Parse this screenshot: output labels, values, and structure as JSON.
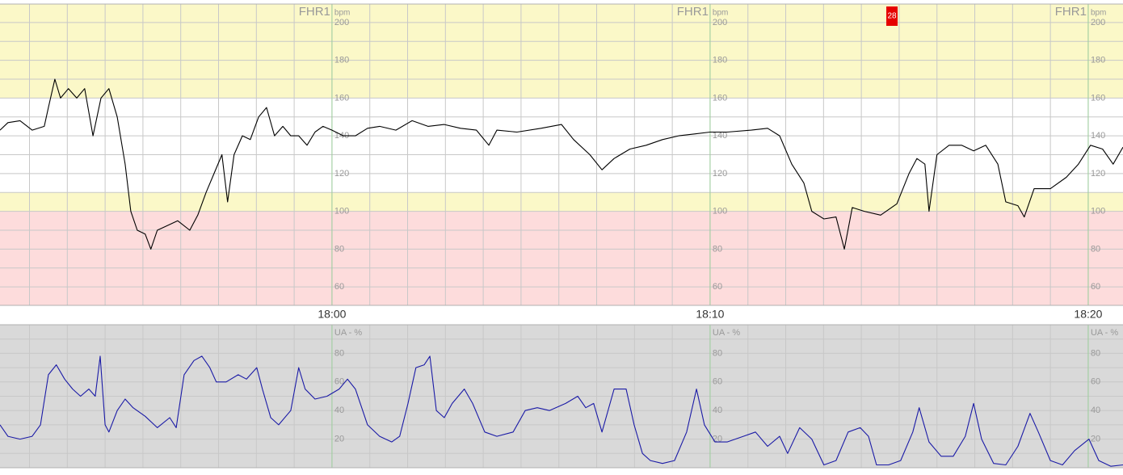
{
  "chart_data": [
    {
      "type": "line",
      "ylabel": "FHR1",
      "yunit": "bpm",
      "xlim": [
        -8.78,
        20.92
      ],
      "xticks": [
        {
          "value": 0,
          "label": "18:00"
        },
        {
          "value": 10,
          "label": "18:10"
        },
        {
          "value": 20,
          "label": "18:20"
        }
      ],
      "ylim": [
        50.2,
        209.8
      ],
      "yticks": [
        60,
        80,
        100,
        120,
        140,
        160,
        180,
        200
      ],
      "grid": true,
      "bands": [
        {
          "from": 160,
          "to": 209.8,
          "color": "#fbf8c8"
        },
        {
          "from": 110,
          "to": 160,
          "color": "#ffffff"
        },
        {
          "from": 100,
          "to": 110,
          "color": "#fbf8c8"
        },
        {
          "from": 50.2,
          "to": 100,
          "color": "#fddcdc"
        }
      ],
      "annotations": [
        {
          "text": "28",
          "x": 14.81,
          "color": "#e60000"
        }
      ],
      "x": [
        -8.78,
        -8.57,
        -8.25,
        -7.93,
        -7.61,
        -7.5,
        -7.33,
        -7.18,
        -6.97,
        -6.75,
        -6.54,
        -6.32,
        -6.11,
        -5.9,
        -5.68,
        -5.47,
        -5.32,
        -5.15,
        -4.94,
        -4.79,
        -4.62,
        -4.4,
        -4.08,
        -3.76,
        -3.55,
        -3.33,
        -3.12,
        -2.91,
        -2.76,
        -2.59,
        -2.37,
        -2.16,
        -1.94,
        -1.73,
        -1.52,
        -1.3,
        -1.09,
        -0.88,
        -0.66,
        -0.45,
        -0.24,
        0,
        0.3,
        0.62,
        0.94,
        1.26,
        1.69,
        2.12,
        2.54,
        2.97,
        3.4,
        3.82,
        4.15,
        4.36,
        4.89,
        5.53,
        6.07,
        6.39,
        6.82,
        7.14,
        7.46,
        7.88,
        8.31,
        8.74,
        9.17,
        9.59,
        10.0,
        10.45,
        11.09,
        11.52,
        11.84,
        12.16,
        12.48,
        12.69,
        13.01,
        13.33,
        13.55,
        13.76,
        14.08,
        14.51,
        14.94,
        15.26,
        15.47,
        15.68,
        15.79,
        16.0,
        16.32,
        16.65,
        16.97,
        17.29,
        17.61,
        17.82,
        18.14,
        18.31,
        18.57,
        19.0,
        19.42,
        19.74,
        20.06,
        20.38,
        20.66,
        20.92
      ],
      "series": [
        {
          "color": "#000000",
          "values": [
            143,
            147,
            148,
            143,
            145,
            155,
            170,
            160,
            165,
            160,
            165,
            140,
            160,
            165,
            150,
            125,
            100,
            90,
            88,
            80,
            90,
            92,
            95,
            90,
            98,
            110,
            120,
            130,
            105,
            130,
            140,
            138,
            150,
            155,
            140,
            145,
            140,
            140,
            135,
            142,
            145,
            143,
            140,
            140,
            144,
            145,
            143,
            148,
            145,
            146,
            144,
            143,
            135,
            143,
            142,
            144,
            146,
            138,
            130,
            122,
            128,
            133,
            135,
            138,
            140,
            141,
            142,
            142,
            143,
            144,
            140,
            125,
            115,
            100,
            96,
            97,
            80,
            102,
            100,
            98,
            104,
            120,
            128,
            125,
            100,
            130,
            135,
            135,
            132,
            135,
            125,
            105,
            103,
            97,
            112,
            112,
            118,
            125,
            135,
            133,
            125,
            134
          ]
        }
      ]
    },
    {
      "type": "line",
      "ylabel": "UA - %",
      "xlim": [
        -8.78,
        20.92
      ],
      "ylim": [
        0,
        100
      ],
      "yticks": [
        20,
        40,
        60,
        80
      ],
      "grid": true,
      "background": "#d9d9d9",
      "x": [
        -8.78,
        -8.57,
        -8.25,
        -7.93,
        -7.71,
        -7.5,
        -7.29,
        -7.07,
        -6.86,
        -6.65,
        -6.43,
        -6.26,
        -6.13,
        -6.0,
        -5.9,
        -5.68,
        -5.47,
        -5.26,
        -4.94,
        -4.62,
        -4.29,
        -4.12,
        -3.91,
        -3.65,
        -3.44,
        -3.23,
        -3.06,
        -2.8,
        -2.48,
        -2.26,
        -1.99,
        -1.84,
        -1.62,
        -1.41,
        -1.09,
        -0.88,
        -0.71,
        -0.45,
        -0.13,
        0.19,
        0.41,
        0.62,
        0.94,
        1.26,
        1.58,
        1.79,
        2.01,
        2.22,
        2.44,
        2.59,
        2.76,
        2.97,
        3.18,
        3.5,
        3.72,
        4.04,
        4.36,
        4.79,
        5.11,
        5.43,
        5.75,
        6.18,
        6.5,
        6.71,
        6.92,
        7.14,
        7.46,
        7.78,
        7.99,
        8.21,
        8.42,
        8.74,
        9.06,
        9.38,
        9.64,
        9.85,
        10.13,
        10.45,
        10.88,
        11.2,
        11.52,
        11.84,
        12.05,
        12.37,
        12.69,
        13.01,
        13.33,
        13.65,
        13.97,
        14.19,
        14.4,
        14.72,
        15.04,
        15.36,
        15.53,
        15.79,
        16.11,
        16.43,
        16.75,
        16.97,
        17.18,
        17.5,
        17.82,
        18.14,
        18.46,
        18.68,
        19.0,
        19.32,
        19.64,
        20.02,
        20.28,
        20.6,
        20.92
      ],
      "series": [
        {
          "color": "#1a1aa6",
          "values": [
            30,
            22,
            20,
            22,
            30,
            65,
            72,
            62,
            55,
            50,
            55,
            50,
            78,
            30,
            25,
            40,
            48,
            42,
            36,
            28,
            35,
            28,
            65,
            75,
            78,
            70,
            60,
            60,
            65,
            62,
            70,
            55,
            35,
            30,
            40,
            70,
            55,
            48,
            50,
            55,
            62,
            55,
            30,
            22,
            18,
            22,
            45,
            70,
            72,
            78,
            40,
            35,
            45,
            55,
            45,
            25,
            22,
            25,
            40,
            42,
            40,
            45,
            50,
            42,
            45,
            25,
            55,
            55,
            30,
            10,
            5,
            3,
            5,
            25,
            55,
            30,
            18,
            18,
            22,
            25,
            15,
            22,
            10,
            28,
            20,
            2,
            5,
            25,
            28,
            22,
            2,
            2,
            5,
            25,
            42,
            18,
            8,
            8,
            22,
            45,
            20,
            3,
            2,
            15,
            38,
            25,
            5,
            2,
            12,
            20,
            5,
            1,
            2
          ]
        }
      ]
    }
  ]
}
